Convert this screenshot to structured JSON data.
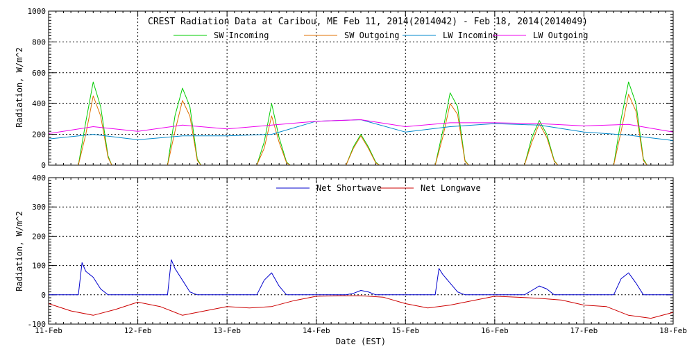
{
  "chart_data": [
    {
      "type": "line",
      "title": "CREST Radiation Data at Caribou, ME   Feb 11, 2014(2014042) - Feb 18, 2014(2014049)",
      "ylabel": "Radiation, W/m^2",
      "xlabel": "",
      "xlim": [
        "2014-02-11",
        "2014-02-18"
      ],
      "ylim": [
        0,
        1000
      ],
      "yticks": [
        "0",
        "200",
        "400",
        "600",
        "800",
        "1000"
      ],
      "xticks": [
        "11-Feb",
        "12-Feb",
        "13-Feb",
        "14-Feb",
        "15-Feb",
        "16-Feb",
        "17-Feb",
        "18-Feb"
      ],
      "grid": true,
      "legend_placement": "top",
      "series": [
        {
          "name": "SW Incoming",
          "color": "#00cc00",
          "x": [
            "2014-02-11 00:00",
            "2014-02-11 08:00",
            "2014-02-11 10:00",
            "2014-02-11 12:00",
            "2014-02-11 14:00",
            "2014-02-11 16:00",
            "2014-02-11 17:00",
            "2014-02-12 08:00",
            "2014-02-12 10:00",
            "2014-02-12 12:00",
            "2014-02-12 14:00",
            "2014-02-12 16:00",
            "2014-02-12 17:00",
            "2014-02-13 08:00",
            "2014-02-13 10:00",
            "2014-02-13 12:00",
            "2014-02-13 14:00",
            "2014-02-13 16:00",
            "2014-02-13 17:00",
            "2014-02-14 08:00",
            "2014-02-14 10:00",
            "2014-02-14 12:00",
            "2014-02-14 14:00",
            "2014-02-14 16:00",
            "2014-02-14 17:00",
            "2014-02-15 08:00",
            "2014-02-15 10:00",
            "2014-02-15 12:00",
            "2014-02-15 14:00",
            "2014-02-15 16:00",
            "2014-02-15 17:00",
            "2014-02-16 08:00",
            "2014-02-16 10:00",
            "2014-02-16 12:00",
            "2014-02-16 14:00",
            "2014-02-16 16:00",
            "2014-02-16 17:00",
            "2014-02-17 08:00",
            "2014-02-17 10:00",
            "2014-02-17 12:00",
            "2014-02-17 14:00",
            "2014-02-17 16:00",
            "2014-02-17 17:00",
            "2014-02-18 00:00"
          ],
          "y": [
            0,
            0,
            280,
            540,
            380,
            60,
            0,
            0,
            320,
            500,
            380,
            40,
            0,
            0,
            150,
            400,
            180,
            20,
            0,
            0,
            120,
            200,
            120,
            20,
            0,
            0,
            220,
            470,
            380,
            30,
            0,
            0,
            180,
            290,
            200,
            30,
            0,
            0,
            300,
            540,
            400,
            40,
            0,
            0
          ]
        },
        {
          "name": "SW Outgoing",
          "color": "#e07000",
          "x": [
            "2014-02-11 00:00",
            "2014-02-11 08:00",
            "2014-02-11 10:00",
            "2014-02-11 12:00",
            "2014-02-11 14:00",
            "2014-02-11 16:00",
            "2014-02-11 17:00",
            "2014-02-12 08:00",
            "2014-02-12 10:00",
            "2014-02-12 12:00",
            "2014-02-12 14:00",
            "2014-02-12 16:00",
            "2014-02-12 17:00",
            "2014-02-13 08:00",
            "2014-02-13 10:00",
            "2014-02-13 12:00",
            "2014-02-13 14:00",
            "2014-02-13 16:00",
            "2014-02-13 17:00",
            "2014-02-14 08:00",
            "2014-02-14 10:00",
            "2014-02-14 12:00",
            "2014-02-14 14:00",
            "2014-02-14 16:00",
            "2014-02-14 17:00",
            "2014-02-15 08:00",
            "2014-02-15 10:00",
            "2014-02-15 12:00",
            "2014-02-15 14:00",
            "2014-02-15 16:00",
            "2014-02-15 17:00",
            "2014-02-16 08:00",
            "2014-02-16 10:00",
            "2014-02-16 12:00",
            "2014-02-16 14:00",
            "2014-02-16 16:00",
            "2014-02-16 17:00",
            "2014-02-17 08:00",
            "2014-02-17 10:00",
            "2014-02-17 12:00",
            "2014-02-17 14:00",
            "2014-02-17 16:00",
            "2014-02-17 17:00",
            "2014-02-18 00:00"
          ],
          "y": [
            0,
            0,
            200,
            450,
            320,
            50,
            0,
            0,
            220,
            420,
            320,
            30,
            0,
            0,
            110,
            320,
            150,
            15,
            0,
            0,
            110,
            190,
            110,
            15,
            0,
            0,
            180,
            400,
            330,
            25,
            0,
            0,
            150,
            270,
            180,
            25,
            0,
            0,
            220,
            460,
            350,
            30,
            0,
            0
          ]
        },
        {
          "name": "LW Incoming",
          "color": "#0088cc",
          "x": [
            "2014-02-11 00:00",
            "2014-02-11 12:00",
            "2014-02-12 00:00",
            "2014-02-12 12:00",
            "2014-02-13 00:00",
            "2014-02-13 12:00",
            "2014-02-14 00:00",
            "2014-02-14 12:00",
            "2014-02-15 00:00",
            "2014-02-15 12:00",
            "2014-02-16 00:00",
            "2014-02-16 12:00",
            "2014-02-17 00:00",
            "2014-02-17 12:00",
            "2014-02-18 00:00"
          ],
          "y": [
            170,
            200,
            165,
            190,
            190,
            200,
            285,
            295,
            215,
            250,
            270,
            260,
            215,
            195,
            160
          ]
        },
        {
          "name": "LW Outgoing",
          "color": "#ee00ee",
          "x": [
            "2014-02-11 00:00",
            "2014-02-11 12:00",
            "2014-02-12 00:00",
            "2014-02-12 12:00",
            "2014-02-13 00:00",
            "2014-02-13 12:00",
            "2014-02-14 00:00",
            "2014-02-14 12:00",
            "2014-02-15 00:00",
            "2014-02-15 12:00",
            "2014-02-16 00:00",
            "2014-02-16 12:00",
            "2014-02-17 00:00",
            "2014-02-17 12:00",
            "2014-02-18 00:00"
          ],
          "y": [
            205,
            250,
            220,
            260,
            235,
            260,
            285,
            295,
            250,
            275,
            275,
            270,
            255,
            265,
            215
          ]
        }
      ]
    },
    {
      "type": "line",
      "title": "",
      "ylabel": "Radiation, W/m^2",
      "xlabel": "Date (EST)",
      "xlim": [
        "2014-02-11",
        "2014-02-18"
      ],
      "ylim": [
        -100,
        400
      ],
      "yticks": [
        "-100",
        "0",
        "100",
        "200",
        "300",
        "400"
      ],
      "xticks": [
        "11-Feb",
        "12-Feb",
        "13-Feb",
        "14-Feb",
        "15-Feb",
        "16-Feb",
        "17-Feb",
        "18-Feb"
      ],
      "grid": true,
      "legend_placement": "top",
      "series": [
        {
          "name": "Net Shortwave",
          "color": "#0000cc",
          "x": [
            "2014-02-11 00:00",
            "2014-02-11 08:00",
            "2014-02-11 09:00",
            "2014-02-11 10:00",
            "2014-02-11 12:00",
            "2014-02-11 14:00",
            "2014-02-11 16:00",
            "2014-02-12 08:00",
            "2014-02-12 09:00",
            "2014-02-12 10:00",
            "2014-02-12 12:00",
            "2014-02-12 14:00",
            "2014-02-12 16:00",
            "2014-02-13 08:00",
            "2014-02-13 10:00",
            "2014-02-13 12:00",
            "2014-02-13 14:00",
            "2014-02-13 16:00",
            "2014-02-14 08:00",
            "2014-02-14 10:00",
            "2014-02-14 12:00",
            "2014-02-14 14:00",
            "2014-02-14 16:00",
            "2014-02-15 08:00",
            "2014-02-15 09:00",
            "2014-02-15 10:00",
            "2014-02-15 12:00",
            "2014-02-15 14:00",
            "2014-02-15 16:00",
            "2014-02-16 08:00",
            "2014-02-16 10:00",
            "2014-02-16 12:00",
            "2014-02-16 14:00",
            "2014-02-16 16:00",
            "2014-02-17 08:00",
            "2014-02-17 10:00",
            "2014-02-17 12:00",
            "2014-02-17 14:00",
            "2014-02-17 16:00",
            "2014-02-18 00:00"
          ],
          "y": [
            0,
            0,
            110,
            80,
            60,
            20,
            0,
            0,
            120,
            90,
            50,
            10,
            0,
            0,
            50,
            75,
            30,
            0,
            0,
            5,
            15,
            10,
            0,
            0,
            90,
            70,
            40,
            10,
            0,
            0,
            15,
            30,
            20,
            0,
            0,
            55,
            75,
            40,
            0,
            0
          ]
        },
        {
          "name": "Net Longwave",
          "color": "#cc0000",
          "x": [
            "2014-02-11 00:00",
            "2014-02-11 06:00",
            "2014-02-11 12:00",
            "2014-02-11 18:00",
            "2014-02-12 00:00",
            "2014-02-12 06:00",
            "2014-02-12 12:00",
            "2014-02-12 18:00",
            "2014-02-13 00:00",
            "2014-02-13 06:00",
            "2014-02-13 12:00",
            "2014-02-13 18:00",
            "2014-02-14 00:00",
            "2014-02-14 06:00",
            "2014-02-14 12:00",
            "2014-02-14 18:00",
            "2014-02-15 00:00",
            "2014-02-15 06:00",
            "2014-02-15 12:00",
            "2014-02-15 18:00",
            "2014-02-16 00:00",
            "2014-02-16 06:00",
            "2014-02-16 12:00",
            "2014-02-16 18:00",
            "2014-02-17 00:00",
            "2014-02-17 06:00",
            "2014-02-17 12:00",
            "2014-02-17 18:00",
            "2014-02-18 00:00"
          ],
          "y": [
            -30,
            -55,
            -70,
            -50,
            -25,
            -40,
            -70,
            -55,
            -40,
            -45,
            -40,
            -20,
            -5,
            -3,
            -3,
            -8,
            -30,
            -45,
            -35,
            -20,
            -5,
            -8,
            -12,
            -18,
            -35,
            -40,
            -70,
            -80,
            -60
          ]
        }
      ]
    }
  ]
}
